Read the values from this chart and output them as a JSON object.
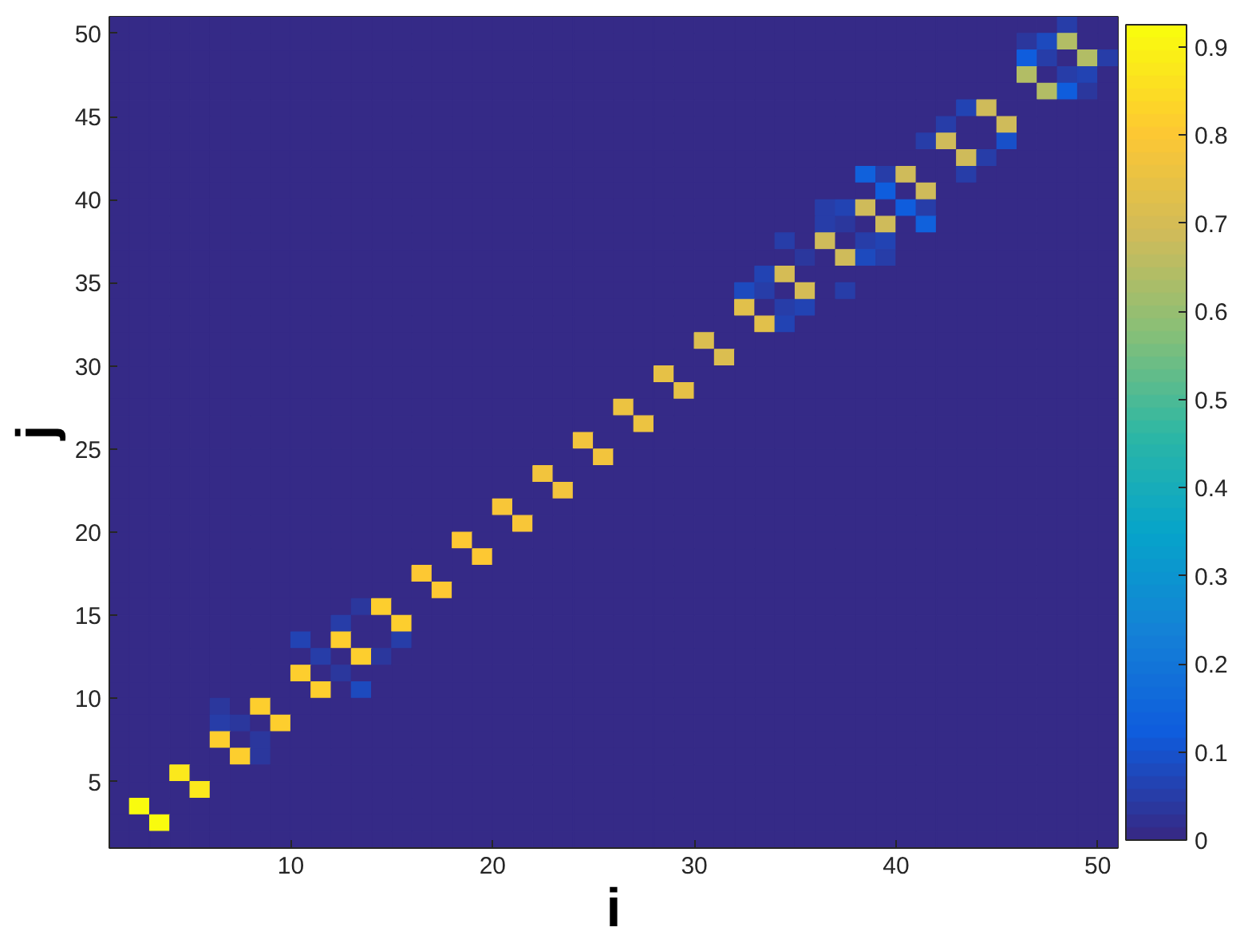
{
  "chart_data": {
    "type": "heatmap",
    "xlabel": "i",
    "ylabel": "j",
    "x": [
      1.5,
      2.5,
      3.5,
      4.5,
      5.5,
      6.5,
      7.5,
      8.5,
      9.5,
      10.5,
      11.5,
      12.5,
      13.5,
      14.5,
      15.5,
      16.5,
      17.5,
      18.5,
      19.5,
      20.5,
      21.5,
      22.5,
      23.5,
      24.5,
      25.5,
      26.5,
      27.5,
      28.5,
      29.5,
      30.5,
      31.5,
      32.5,
      33.5,
      34.5,
      35.5,
      36.5,
      37.5,
      38.5,
      39.5,
      40.5,
      41.5,
      42.5,
      43.5,
      44.5,
      45.5,
      46.5,
      47.5,
      48.5,
      49.5,
      50.5
    ],
    "y": [
      50.5,
      49.5,
      48.5,
      47.5,
      46.5,
      45.5,
      44.5,
      43.5,
      42.5,
      41.5,
      40.5,
      39.5,
      38.5,
      37.5,
      36.5,
      35.5,
      34.5,
      33.5,
      32.5,
      31.5,
      30.5,
      29.5,
      28.5,
      27.5,
      26.5,
      25.5,
      24.5,
      23.5,
      22.5,
      21.5,
      20.5,
      19.5,
      18.5,
      17.5,
      16.5,
      15.5,
      14.5,
      13.5,
      12.5,
      11.5,
      10.5,
      9.5,
      8.5,
      7.5,
      6.5,
      5.5,
      4.5,
      3.5,
      2.5,
      1.5
    ],
    "xlim": [
      1,
      51
    ],
    "xticks": [
      10,
      20,
      30,
      40,
      50
    ],
    "ylim": [
      1,
      51
    ],
    "yticks": [
      5,
      10,
      15,
      20,
      25,
      30,
      35,
      40,
      45,
      50
    ],
    "clim": [
      0,
      0.925
    ],
    "cticks": [
      0,
      0.1,
      0.2,
      0.3,
      0.4,
      0.5,
      0.6,
      0.7,
      0.8,
      0.9
    ],
    "cells": [
      [
        0,
        0,
        0,
        0,
        0,
        0,
        0,
        0,
        0,
        0,
        0,
        0,
        0,
        0,
        0,
        0,
        0,
        0,
        0,
        0,
        0,
        0,
        0,
        0,
        0,
        0,
        0,
        0,
        0,
        0,
        0,
        0,
        0,
        0,
        0,
        0,
        0,
        0,
        0,
        0,
        0,
        0,
        0,
        0,
        0,
        0,
        0,
        0.05,
        0,
        0
      ],
      [
        0,
        0,
        0,
        0,
        0,
        0,
        0,
        0,
        0,
        0,
        0,
        0,
        0,
        0,
        0,
        0,
        0,
        0,
        0,
        0,
        0,
        0,
        0,
        0,
        0,
        0,
        0,
        0,
        0,
        0,
        0,
        0,
        0,
        0,
        0,
        0,
        0,
        0,
        0,
        0,
        0,
        0,
        0,
        0,
        0,
        0.04,
        0.08,
        0.64,
        0,
        0
      ],
      [
        0,
        0,
        0,
        0,
        0,
        0,
        0,
        0,
        0,
        0,
        0,
        0,
        0,
        0,
        0,
        0,
        0,
        0,
        0,
        0,
        0,
        0,
        0,
        0,
        0,
        0,
        0,
        0,
        0,
        0,
        0,
        0,
        0,
        0,
        0,
        0,
        0,
        0,
        0,
        0,
        0,
        0,
        0,
        0,
        0,
        0.12,
        0.05,
        0,
        0.64,
        0.05
      ],
      [
        0,
        0,
        0,
        0,
        0,
        0,
        0,
        0,
        0,
        0,
        0,
        0,
        0,
        0,
        0,
        0,
        0,
        0,
        0,
        0,
        0,
        0,
        0,
        0,
        0,
        0,
        0,
        0,
        0,
        0,
        0,
        0,
        0,
        0,
        0,
        0,
        0,
        0,
        0,
        0,
        0,
        0,
        0,
        0,
        0,
        0.64,
        0,
        0.05,
        0.07,
        0
      ],
      [
        0,
        0,
        0,
        0,
        0,
        0,
        0,
        0,
        0,
        0,
        0,
        0,
        0,
        0,
        0,
        0,
        0,
        0,
        0,
        0,
        0,
        0,
        0,
        0,
        0,
        0,
        0,
        0,
        0,
        0,
        0,
        0,
        0,
        0,
        0,
        0,
        0,
        0,
        0,
        0,
        0,
        0,
        0,
        0,
        0,
        0,
        0.64,
        0.12,
        0.04,
        0
      ],
      [
        0,
        0,
        0,
        0,
        0,
        0,
        0,
        0,
        0,
        0,
        0,
        0,
        0,
        0,
        0,
        0,
        0,
        0,
        0,
        0,
        0,
        0,
        0,
        0,
        0,
        0,
        0,
        0,
        0,
        0,
        0,
        0,
        0,
        0,
        0,
        0,
        0,
        0,
        0,
        0,
        0,
        0,
        0.07,
        0.68,
        0,
        0,
        0,
        0,
        0,
        0
      ],
      [
        0,
        0,
        0,
        0,
        0,
        0,
        0,
        0,
        0,
        0,
        0,
        0,
        0,
        0,
        0,
        0,
        0,
        0,
        0,
        0,
        0,
        0,
        0,
        0,
        0,
        0,
        0,
        0,
        0,
        0,
        0,
        0,
        0,
        0,
        0,
        0,
        0,
        0,
        0,
        0,
        0,
        0.05,
        0,
        0,
        0.68,
        0,
        0,
        0,
        0,
        0
      ],
      [
        0,
        0,
        0,
        0,
        0,
        0,
        0,
        0,
        0,
        0,
        0,
        0,
        0,
        0,
        0,
        0,
        0,
        0,
        0,
        0,
        0,
        0,
        0,
        0,
        0,
        0,
        0,
        0,
        0,
        0,
        0,
        0,
        0,
        0,
        0,
        0,
        0,
        0,
        0,
        0,
        0.05,
        0.68,
        0,
        0,
        0.1,
        0,
        0,
        0,
        0,
        0
      ],
      [
        0,
        0,
        0,
        0,
        0,
        0,
        0,
        0,
        0,
        0,
        0,
        0,
        0,
        0,
        0,
        0,
        0,
        0,
        0,
        0,
        0,
        0,
        0,
        0,
        0,
        0,
        0,
        0,
        0,
        0,
        0,
        0,
        0,
        0,
        0,
        0,
        0,
        0,
        0,
        0,
        0,
        0,
        0.68,
        0.05,
        0,
        0,
        0,
        0,
        0,
        0
      ],
      [
        0,
        0,
        0,
        0,
        0,
        0,
        0,
        0,
        0,
        0,
        0,
        0,
        0,
        0,
        0,
        0,
        0,
        0,
        0,
        0,
        0,
        0,
        0,
        0,
        0,
        0,
        0,
        0,
        0,
        0,
        0,
        0,
        0,
        0,
        0,
        0,
        0,
        0.14,
        0.05,
        0.68,
        0,
        0,
        0.05,
        0,
        0,
        0,
        0,
        0,
        0,
        0
      ],
      [
        0,
        0,
        0,
        0,
        0,
        0,
        0,
        0,
        0,
        0,
        0,
        0,
        0,
        0,
        0,
        0,
        0,
        0,
        0,
        0,
        0,
        0,
        0,
        0,
        0,
        0,
        0,
        0,
        0,
        0,
        0,
        0,
        0,
        0,
        0,
        0,
        0,
        0,
        0.13,
        0,
        0.68,
        0,
        0,
        0,
        0,
        0,
        0,
        0,
        0,
        0
      ],
      [
        0,
        0,
        0,
        0,
        0,
        0,
        0,
        0,
        0,
        0,
        0,
        0,
        0,
        0,
        0,
        0,
        0,
        0,
        0,
        0,
        0,
        0,
        0,
        0,
        0,
        0,
        0,
        0,
        0,
        0,
        0,
        0,
        0,
        0,
        0,
        0.05,
        0.07,
        0.68,
        0,
        0.13,
        0.05,
        0,
        0,
        0,
        0,
        0,
        0,
        0,
        0,
        0
      ],
      [
        0,
        0,
        0,
        0,
        0,
        0,
        0,
        0,
        0,
        0,
        0,
        0,
        0,
        0,
        0,
        0,
        0,
        0,
        0,
        0,
        0,
        0,
        0,
        0,
        0,
        0,
        0,
        0,
        0,
        0,
        0,
        0,
        0,
        0,
        0,
        0.05,
        0.04,
        0,
        0.68,
        0,
        0.14,
        0,
        0,
        0,
        0,
        0,
        0,
        0,
        0,
        0
      ],
      [
        0,
        0,
        0,
        0,
        0,
        0,
        0,
        0,
        0,
        0,
        0,
        0,
        0,
        0,
        0,
        0,
        0,
        0,
        0,
        0,
        0,
        0,
        0,
        0,
        0,
        0,
        0,
        0,
        0,
        0,
        0,
        0,
        0,
        0.05,
        0,
        0.69,
        0,
        0.05,
        0.06,
        0,
        0,
        0,
        0,
        0,
        0,
        0,
        0,
        0,
        0,
        0
      ],
      [
        0,
        0,
        0,
        0,
        0,
        0,
        0,
        0,
        0,
        0,
        0,
        0,
        0,
        0,
        0,
        0,
        0,
        0,
        0,
        0,
        0,
        0,
        0,
        0,
        0,
        0,
        0,
        0,
        0,
        0,
        0,
        0,
        0,
        0,
        0.04,
        0,
        0.69,
        0.08,
        0.05,
        0,
        0,
        0,
        0,
        0,
        0,
        0,
        0,
        0,
        0,
        0
      ],
      [
        0,
        0,
        0,
        0,
        0,
        0,
        0,
        0,
        0,
        0,
        0,
        0,
        0,
        0,
        0,
        0,
        0,
        0,
        0,
        0,
        0,
        0,
        0,
        0,
        0,
        0,
        0,
        0,
        0,
        0,
        0,
        0,
        0.06,
        0.7,
        0,
        0,
        0,
        0,
        0,
        0,
        0,
        0,
        0,
        0,
        0,
        0,
        0,
        0,
        0,
        0
      ],
      [
        0,
        0,
        0,
        0,
        0,
        0,
        0,
        0,
        0,
        0,
        0,
        0,
        0,
        0,
        0,
        0,
        0,
        0,
        0,
        0,
        0,
        0,
        0,
        0,
        0,
        0,
        0,
        0,
        0,
        0,
        0,
        0.08,
        0.05,
        0,
        0.7,
        0,
        0.05,
        0,
        0,
        0,
        0,
        0,
        0,
        0,
        0,
        0,
        0,
        0,
        0,
        0
      ],
      [
        0,
        0,
        0,
        0,
        0,
        0,
        0,
        0,
        0,
        0,
        0,
        0,
        0,
        0,
        0,
        0,
        0,
        0,
        0,
        0,
        0,
        0,
        0,
        0,
        0,
        0,
        0,
        0,
        0,
        0,
        0,
        0.73,
        0,
        0.05,
        0.07,
        0,
        0,
        0,
        0,
        0,
        0,
        0,
        0,
        0,
        0,
        0,
        0,
        0,
        0,
        0
      ],
      [
        0,
        0,
        0,
        0,
        0,
        0,
        0,
        0,
        0,
        0,
        0,
        0,
        0,
        0,
        0,
        0,
        0,
        0,
        0,
        0,
        0,
        0,
        0,
        0,
        0,
        0,
        0,
        0,
        0,
        0,
        0,
        0,
        0.73,
        0.06,
        0,
        0,
        0,
        0,
        0,
        0,
        0,
        0,
        0,
        0,
        0,
        0,
        0,
        0,
        0,
        0
      ],
      [
        0,
        0,
        0,
        0,
        0,
        0,
        0,
        0,
        0,
        0,
        0,
        0,
        0,
        0,
        0,
        0,
        0,
        0,
        0,
        0,
        0,
        0,
        0,
        0,
        0,
        0,
        0,
        0,
        0,
        0.72,
        0,
        0,
        0,
        0,
        0,
        0,
        0,
        0,
        0,
        0,
        0,
        0,
        0,
        0,
        0,
        0,
        0,
        0,
        0,
        0
      ],
      [
        0,
        0,
        0,
        0,
        0,
        0,
        0,
        0,
        0,
        0,
        0,
        0,
        0,
        0,
        0,
        0,
        0,
        0,
        0,
        0,
        0,
        0,
        0,
        0,
        0,
        0,
        0,
        0,
        0,
        0,
        0.72,
        0,
        0,
        0,
        0,
        0,
        0,
        0,
        0,
        0,
        0,
        0,
        0,
        0,
        0,
        0,
        0,
        0,
        0,
        0
      ],
      [
        0,
        0,
        0,
        0,
        0,
        0,
        0,
        0,
        0,
        0,
        0,
        0,
        0,
        0,
        0,
        0,
        0,
        0,
        0,
        0,
        0,
        0,
        0,
        0,
        0,
        0,
        0,
        0.74,
        0,
        0,
        0,
        0,
        0,
        0,
        0,
        0,
        0,
        0,
        0,
        0,
        0,
        0,
        0,
        0,
        0,
        0,
        0,
        0,
        0,
        0
      ],
      [
        0,
        0,
        0,
        0,
        0,
        0,
        0,
        0,
        0,
        0,
        0,
        0,
        0,
        0,
        0,
        0,
        0,
        0,
        0,
        0,
        0,
        0,
        0,
        0,
        0,
        0,
        0,
        0,
        0.74,
        0,
        0,
        0,
        0,
        0,
        0,
        0,
        0,
        0,
        0,
        0,
        0,
        0,
        0,
        0,
        0,
        0,
        0,
        0,
        0,
        0
      ],
      [
        0,
        0,
        0,
        0,
        0,
        0,
        0,
        0,
        0,
        0,
        0,
        0,
        0,
        0,
        0,
        0,
        0,
        0,
        0,
        0,
        0,
        0,
        0,
        0,
        0,
        0.76,
        0,
        0,
        0,
        0,
        0,
        0,
        0,
        0,
        0,
        0,
        0,
        0,
        0,
        0,
        0,
        0,
        0,
        0,
        0,
        0,
        0,
        0,
        0,
        0
      ],
      [
        0,
        0,
        0,
        0,
        0,
        0,
        0,
        0,
        0,
        0,
        0,
        0,
        0,
        0,
        0,
        0,
        0,
        0,
        0,
        0,
        0,
        0,
        0,
        0,
        0,
        0,
        0.76,
        0,
        0,
        0,
        0,
        0,
        0,
        0,
        0,
        0,
        0,
        0,
        0,
        0,
        0,
        0,
        0,
        0,
        0,
        0,
        0,
        0,
        0,
        0
      ],
      [
        0,
        0,
        0,
        0,
        0,
        0,
        0,
        0,
        0,
        0,
        0,
        0,
        0,
        0,
        0,
        0,
        0,
        0,
        0,
        0,
        0,
        0,
        0,
        0.77,
        0,
        0,
        0,
        0,
        0,
        0,
        0,
        0,
        0,
        0,
        0,
        0,
        0,
        0,
        0,
        0,
        0,
        0,
        0,
        0,
        0,
        0,
        0,
        0,
        0,
        0
      ],
      [
        0,
        0,
        0,
        0,
        0,
        0,
        0,
        0,
        0,
        0,
        0,
        0,
        0,
        0,
        0,
        0,
        0,
        0,
        0,
        0,
        0,
        0,
        0,
        0,
        0.77,
        0,
        0,
        0,
        0,
        0,
        0,
        0,
        0,
        0,
        0,
        0,
        0,
        0,
        0,
        0,
        0,
        0,
        0,
        0,
        0,
        0,
        0,
        0,
        0,
        0
      ],
      [
        0,
        0,
        0,
        0,
        0,
        0,
        0,
        0,
        0,
        0,
        0,
        0,
        0,
        0,
        0,
        0,
        0,
        0,
        0,
        0,
        0,
        0.78,
        0,
        0,
        0,
        0,
        0,
        0,
        0,
        0,
        0,
        0,
        0,
        0,
        0,
        0,
        0,
        0,
        0,
        0,
        0,
        0,
        0,
        0,
        0,
        0,
        0,
        0,
        0,
        0
      ],
      [
        0,
        0,
        0,
        0,
        0,
        0,
        0,
        0,
        0,
        0,
        0,
        0,
        0,
        0,
        0,
        0,
        0,
        0,
        0,
        0,
        0,
        0,
        0.78,
        0,
        0,
        0,
        0,
        0,
        0,
        0,
        0,
        0,
        0,
        0,
        0,
        0,
        0,
        0,
        0,
        0,
        0,
        0,
        0,
        0,
        0,
        0,
        0,
        0,
        0,
        0
      ],
      [
        0,
        0,
        0,
        0,
        0,
        0,
        0,
        0,
        0,
        0,
        0,
        0,
        0,
        0,
        0,
        0,
        0,
        0,
        0,
        0.79,
        0,
        0,
        0,
        0,
        0,
        0,
        0,
        0,
        0,
        0,
        0,
        0,
        0,
        0,
        0,
        0,
        0,
        0,
        0,
        0,
        0,
        0,
        0,
        0,
        0,
        0,
        0,
        0,
        0,
        0
      ],
      [
        0,
        0,
        0,
        0,
        0,
        0,
        0,
        0,
        0,
        0,
        0,
        0,
        0,
        0,
        0,
        0,
        0,
        0,
        0,
        0,
        0.79,
        0,
        0,
        0,
        0,
        0,
        0,
        0,
        0,
        0,
        0,
        0,
        0,
        0,
        0,
        0,
        0,
        0,
        0,
        0,
        0,
        0,
        0,
        0,
        0,
        0,
        0,
        0,
        0,
        0
      ],
      [
        0,
        0,
        0,
        0,
        0,
        0,
        0,
        0,
        0,
        0,
        0,
        0,
        0,
        0,
        0,
        0,
        0,
        0.8,
        0,
        0,
        0,
        0,
        0,
        0,
        0,
        0,
        0,
        0,
        0,
        0,
        0,
        0,
        0,
        0,
        0,
        0,
        0,
        0,
        0,
        0,
        0,
        0,
        0,
        0,
        0,
        0,
        0,
        0,
        0,
        0
      ],
      [
        0,
        0,
        0,
        0,
        0,
        0,
        0,
        0,
        0,
        0,
        0,
        0,
        0,
        0,
        0,
        0,
        0,
        0,
        0.8,
        0,
        0,
        0,
        0,
        0,
        0,
        0,
        0,
        0,
        0,
        0,
        0,
        0,
        0,
        0,
        0,
        0,
        0,
        0,
        0,
        0,
        0,
        0,
        0,
        0,
        0,
        0,
        0,
        0,
        0,
        0
      ],
      [
        0,
        0,
        0,
        0,
        0,
        0,
        0,
        0,
        0,
        0,
        0,
        0,
        0,
        0,
        0,
        0.8,
        0,
        0,
        0,
        0,
        0,
        0,
        0,
        0,
        0,
        0,
        0,
        0,
        0,
        0,
        0,
        0,
        0,
        0,
        0,
        0,
        0,
        0,
        0,
        0,
        0,
        0,
        0,
        0,
        0,
        0,
        0,
        0,
        0,
        0
      ],
      [
        0,
        0,
        0,
        0,
        0,
        0,
        0,
        0,
        0,
        0,
        0,
        0,
        0,
        0,
        0,
        0,
        0.8,
        0,
        0,
        0,
        0,
        0,
        0,
        0,
        0,
        0,
        0,
        0,
        0,
        0,
        0,
        0,
        0,
        0,
        0,
        0,
        0,
        0,
        0,
        0,
        0,
        0,
        0,
        0,
        0,
        0,
        0,
        0,
        0,
        0
      ],
      [
        0,
        0,
        0,
        0,
        0,
        0,
        0,
        0,
        0,
        0,
        0,
        0,
        0.04,
        0.81,
        0,
        0,
        0,
        0,
        0,
        0,
        0,
        0,
        0,
        0,
        0,
        0,
        0,
        0,
        0,
        0,
        0,
        0,
        0,
        0,
        0,
        0,
        0,
        0,
        0,
        0,
        0,
        0,
        0,
        0,
        0,
        0,
        0,
        0,
        0,
        0
      ],
      [
        0,
        0,
        0,
        0,
        0,
        0,
        0,
        0,
        0,
        0,
        0,
        0.05,
        0,
        0,
        0.81,
        0,
        0,
        0,
        0,
        0,
        0,
        0,
        0,
        0,
        0,
        0,
        0,
        0,
        0,
        0,
        0,
        0,
        0,
        0,
        0,
        0,
        0,
        0,
        0,
        0,
        0,
        0,
        0,
        0,
        0,
        0,
        0,
        0,
        0,
        0
      ],
      [
        0,
        0,
        0,
        0,
        0,
        0,
        0,
        0,
        0,
        0.07,
        0,
        0.82,
        0,
        0,
        0.05,
        0,
        0,
        0,
        0,
        0,
        0,
        0,
        0,
        0,
        0,
        0,
        0,
        0,
        0,
        0,
        0,
        0,
        0,
        0,
        0,
        0,
        0,
        0,
        0,
        0,
        0,
        0,
        0,
        0,
        0,
        0,
        0,
        0,
        0,
        0
      ],
      [
        0,
        0,
        0,
        0,
        0,
        0,
        0,
        0,
        0,
        0,
        0.05,
        0,
        0.82,
        0.04,
        0,
        0,
        0,
        0,
        0,
        0,
        0,
        0,
        0,
        0,
        0,
        0,
        0,
        0,
        0,
        0,
        0,
        0,
        0,
        0,
        0,
        0,
        0,
        0,
        0,
        0,
        0,
        0,
        0,
        0,
        0,
        0,
        0,
        0,
        0,
        0
      ],
      [
        0,
        0,
        0,
        0,
        0,
        0,
        0,
        0,
        0,
        0.82,
        0,
        0.04,
        0,
        0,
        0,
        0,
        0,
        0,
        0,
        0,
        0,
        0,
        0,
        0,
        0,
        0,
        0,
        0,
        0,
        0,
        0,
        0,
        0,
        0,
        0,
        0,
        0,
        0,
        0,
        0,
        0,
        0,
        0,
        0,
        0,
        0,
        0,
        0,
        0,
        0
      ],
      [
        0,
        0,
        0,
        0,
        0,
        0,
        0,
        0,
        0,
        0,
        0.82,
        0,
        0.08,
        0,
        0,
        0,
        0,
        0,
        0,
        0,
        0,
        0,
        0,
        0,
        0,
        0,
        0,
        0,
        0,
        0,
        0,
        0,
        0,
        0,
        0,
        0,
        0,
        0,
        0,
        0,
        0,
        0,
        0,
        0,
        0,
        0,
        0,
        0,
        0,
        0
      ],
      [
        0,
        0,
        0,
        0,
        0,
        0.04,
        0,
        0.82,
        0,
        0,
        0,
        0,
        0,
        0,
        0,
        0,
        0,
        0,
        0,
        0,
        0,
        0,
        0,
        0,
        0,
        0,
        0,
        0,
        0,
        0,
        0,
        0,
        0,
        0,
        0,
        0,
        0,
        0,
        0,
        0,
        0,
        0,
        0,
        0,
        0,
        0,
        0,
        0,
        0,
        0
      ],
      [
        0,
        0,
        0,
        0,
        0,
        0.05,
        0.04,
        0,
        0.82,
        0,
        0,
        0,
        0,
        0,
        0,
        0,
        0,
        0,
        0,
        0,
        0,
        0,
        0,
        0,
        0,
        0,
        0,
        0,
        0,
        0,
        0,
        0,
        0,
        0,
        0,
        0,
        0,
        0,
        0,
        0,
        0,
        0,
        0,
        0,
        0,
        0,
        0,
        0,
        0,
        0
      ],
      [
        0,
        0,
        0,
        0,
        0,
        0.82,
        0,
        0.04,
        0,
        0,
        0,
        0,
        0,
        0,
        0,
        0,
        0,
        0,
        0,
        0,
        0,
        0,
        0,
        0,
        0,
        0,
        0,
        0,
        0,
        0,
        0,
        0,
        0,
        0,
        0,
        0,
        0,
        0,
        0,
        0,
        0,
        0,
        0,
        0,
        0,
        0,
        0,
        0,
        0,
        0
      ],
      [
        0,
        0,
        0,
        0,
        0,
        0,
        0.82,
        0.04,
        0,
        0,
        0,
        0,
        0,
        0,
        0,
        0,
        0,
        0,
        0,
        0,
        0,
        0,
        0,
        0,
        0,
        0,
        0,
        0,
        0,
        0,
        0,
        0,
        0,
        0,
        0,
        0,
        0,
        0,
        0,
        0,
        0,
        0,
        0,
        0,
        0,
        0,
        0,
        0,
        0,
        0
      ],
      [
        0,
        0,
        0,
        0.88,
        0,
        0,
        0,
        0,
        0,
        0,
        0,
        0,
        0,
        0,
        0,
        0,
        0,
        0,
        0,
        0,
        0,
        0,
        0,
        0,
        0,
        0,
        0,
        0,
        0,
        0,
        0,
        0,
        0,
        0,
        0,
        0,
        0,
        0,
        0,
        0,
        0,
        0,
        0,
        0,
        0,
        0,
        0,
        0,
        0,
        0
      ],
      [
        0,
        0,
        0,
        0,
        0.88,
        0,
        0,
        0,
        0,
        0,
        0,
        0,
        0,
        0,
        0,
        0,
        0,
        0,
        0,
        0,
        0,
        0,
        0,
        0,
        0,
        0,
        0,
        0,
        0,
        0,
        0,
        0,
        0,
        0,
        0,
        0,
        0,
        0,
        0,
        0,
        0,
        0,
        0,
        0,
        0,
        0,
        0,
        0,
        0,
        0
      ],
      [
        0,
        0.92,
        0,
        0,
        0,
        0,
        0,
        0,
        0,
        0,
        0,
        0,
        0,
        0,
        0,
        0,
        0,
        0,
        0,
        0,
        0,
        0,
        0,
        0,
        0,
        0,
        0,
        0,
        0,
        0,
        0,
        0,
        0,
        0,
        0,
        0,
        0,
        0,
        0,
        0,
        0,
        0,
        0,
        0,
        0,
        0,
        0,
        0,
        0,
        0
      ],
      [
        0,
        0,
        0.92,
        0,
        0,
        0,
        0,
        0,
        0,
        0,
        0,
        0,
        0,
        0,
        0,
        0,
        0,
        0,
        0,
        0,
        0,
        0,
        0,
        0,
        0,
        0,
        0,
        0,
        0,
        0,
        0,
        0,
        0,
        0,
        0,
        0,
        0,
        0,
        0,
        0,
        0,
        0,
        0,
        0,
        0,
        0,
        0,
        0,
        0,
        0
      ],
      [
        0,
        0,
        0,
        0,
        0,
        0,
        0,
        0,
        0,
        0,
        0,
        0,
        0,
        0,
        0,
        0,
        0,
        0,
        0,
        0,
        0,
        0,
        0,
        0,
        0,
        0,
        0,
        0,
        0,
        0,
        0,
        0,
        0,
        0,
        0,
        0,
        0,
        0,
        0,
        0,
        0,
        0,
        0,
        0,
        0,
        0,
        0,
        0,
        0,
        0
      ]
    ]
  }
}
